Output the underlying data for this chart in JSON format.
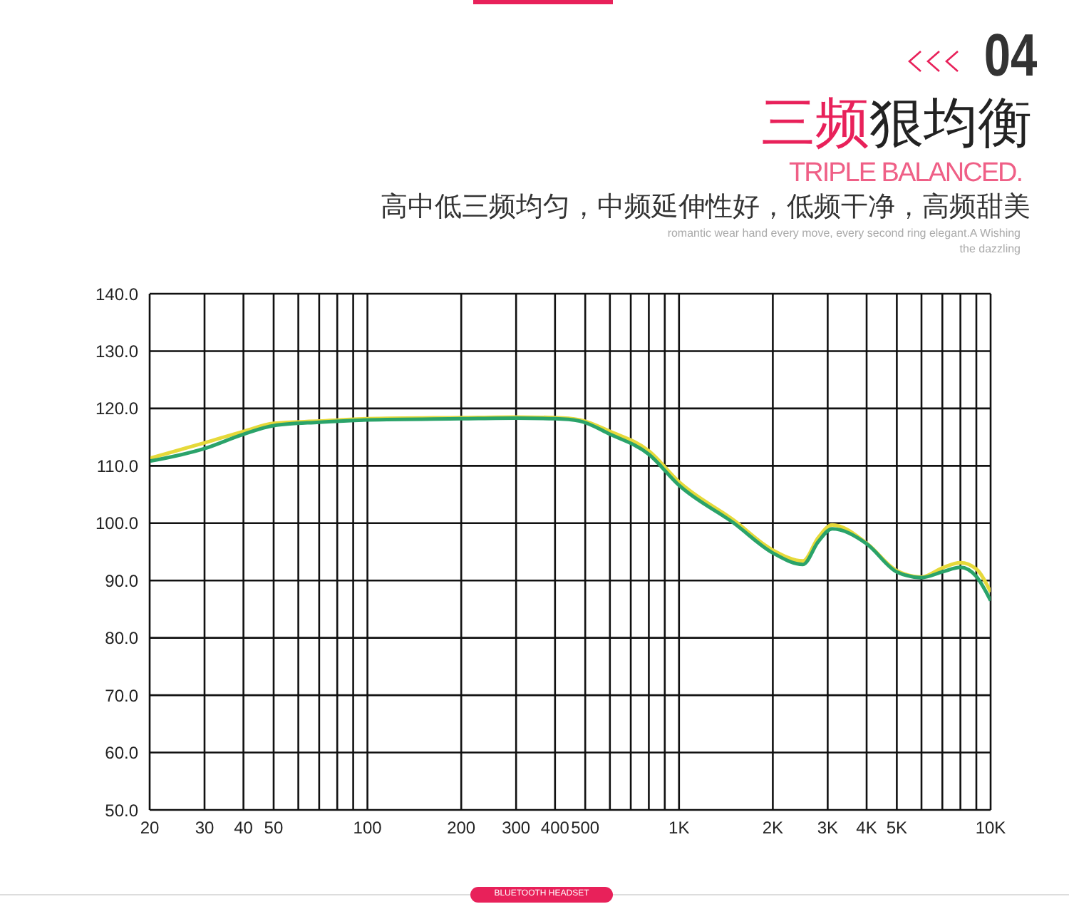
{
  "chart_data": {
    "type": "line",
    "title": "三频狠均衡",
    "subtitle": "TRIPLE BALANCED.",
    "annotations": [
      "04",
      "高中低三频均匀，中频延伸性好，低频干净，高频甜美",
      "romantic wear hand every move, every second ring elegant.A Wishing the dazzling",
      "BLUETOOTH HEADSET"
    ],
    "x": [
      20,
      30,
      40,
      50,
      70,
      100,
      200,
      300,
      400,
      480,
      600,
      800,
      1000,
      1500,
      2000,
      2500,
      2800,
      3100,
      4000,
      5000,
      6000,
      7000,
      8000,
      9000,
      10000
    ],
    "series": [
      {
        "color": "#e6d93a",
        "values": [
          111.3,
          114,
          116,
          117.4,
          117.8,
          118.2,
          118.4,
          118.5,
          118.4,
          118,
          116,
          112.6,
          107.2,
          100.5,
          95.3,
          93.4,
          97.5,
          99.7,
          96.5,
          91.7,
          90.6,
          92.2,
          93.1,
          92,
          88
        ]
      },
      {
        "color": "#2aa36a",
        "values": [
          110.8,
          113,
          115.5,
          117,
          117.6,
          118,
          118.2,
          118.3,
          118.2,
          117.8,
          115.5,
          112,
          106.6,
          100,
          94.8,
          92.8,
          96.8,
          99,
          96.4,
          91.5,
          90.5,
          91.5,
          92.3,
          90.7,
          86.5
        ]
      }
    ],
    "xlim": [
      20,
      10000
    ],
    "log": "x",
    "xticks": [
      20,
      30,
      40,
      50,
      {
        "value": 60,
        "label": null
      },
      {
        "value": 70,
        "label": null
      },
      {
        "value": 80,
        "label": null
      },
      {
        "value": 90,
        "label": null
      },
      100,
      200,
      300,
      400,
      500,
      {
        "value": 600,
        "label": null
      },
      {
        "value": 700,
        "label": null
      },
      {
        "value": 800,
        "label": null
      },
      {
        "value": 900,
        "label": null
      },
      {
        "value": 1000,
        "label": "1K"
      },
      {
        "value": 2000,
        "label": "2K"
      },
      {
        "value": 3000,
        "label": "3K"
      },
      {
        "value": 4000,
        "label": "4K"
      },
      {
        "value": 5000,
        "label": "5K"
      },
      {
        "value": 6000,
        "label": null
      },
      {
        "value": 7000,
        "label": null
      },
      {
        "value": 8000,
        "label": null
      },
      {
        "value": 9000,
        "label": null
      },
      {
        "value": 10000,
        "label": "10K"
      }
    ],
    "ylim": [
      50,
      140
    ],
    "yticks": [
      {
        "value": 50,
        "label": "50.0"
      },
      {
        "value": 60,
        "label": "60.0"
      },
      {
        "value": 70,
        "label": "70.0"
      },
      {
        "value": 80,
        "label": "80.0"
      },
      {
        "value": 90,
        "label": "90.0"
      },
      {
        "value": 100,
        "label": "100.0"
      },
      {
        "value": 110,
        "label": "110.0"
      },
      {
        "value": 120,
        "label": "120.0"
      },
      {
        "value": 130,
        "label": "130.0"
      },
      {
        "value": 140,
        "label": "140.0"
      }
    ],
    "grid": true,
    "marker": "none",
    "line_style": "solid"
  }
}
